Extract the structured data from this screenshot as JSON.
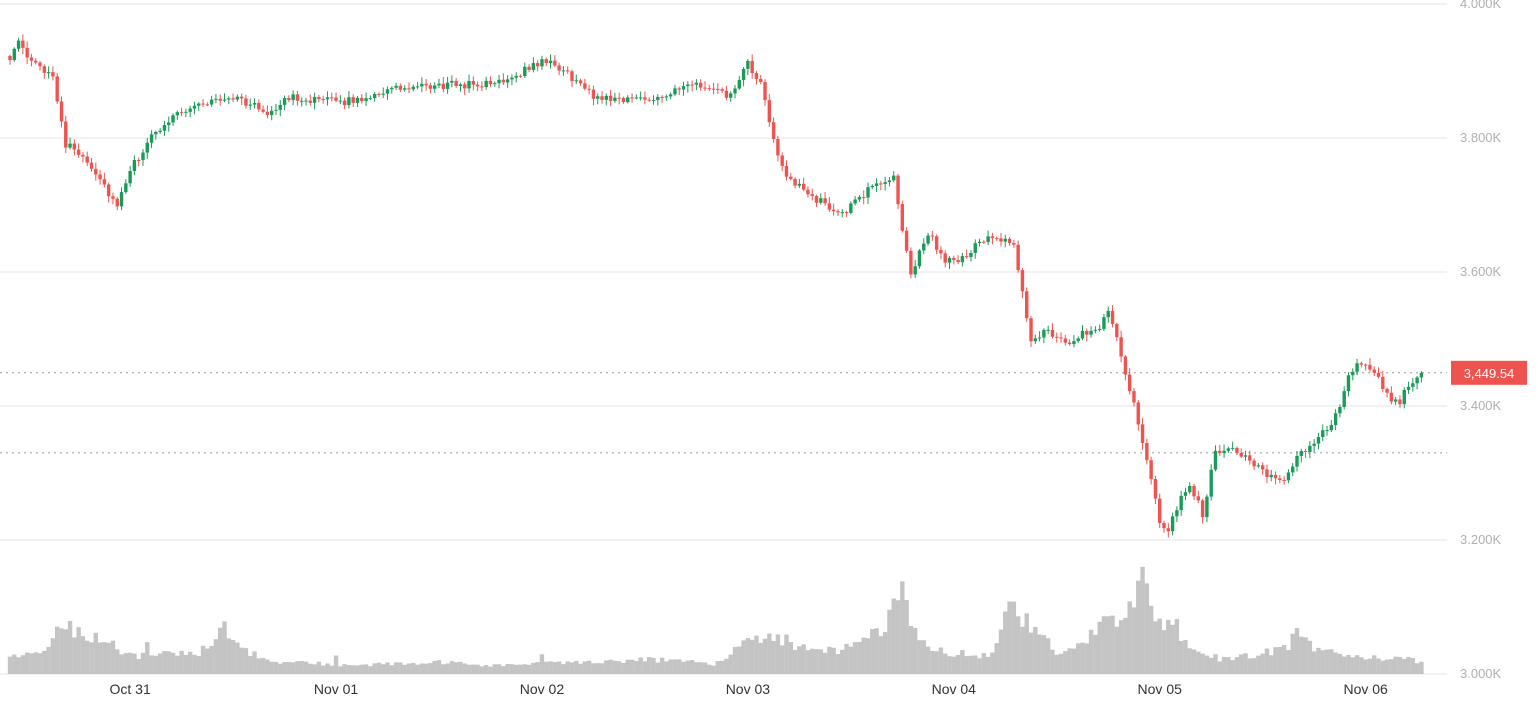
{
  "chart_data": {
    "type": "candlestick",
    "candle_interval": "30m",
    "y_axis": {
      "position": "right",
      "ylim": [
        3000,
        4000
      ],
      "ticks": [
        {
          "value": 3000,
          "label": "3.000K"
        },
        {
          "value": 3200,
          "label": "3.200K"
        },
        {
          "value": 3400,
          "label": "3.400K"
        },
        {
          "value": 3600,
          "label": "3.600K"
        },
        {
          "value": 3800,
          "label": "3.800K"
        },
        {
          "value": 4000,
          "label": "4.000K"
        }
      ]
    },
    "x_axis": {
      "labels": [
        {
          "index": 28,
          "label": "Oct 31"
        },
        {
          "index": 76,
          "label": "Nov 01"
        },
        {
          "index": 124,
          "label": "Nov 02"
        },
        {
          "index": 172,
          "label": "Nov 03"
        },
        {
          "index": 220,
          "label": "Nov 04"
        },
        {
          "index": 268,
          "label": "Nov 05"
        },
        {
          "index": 316,
          "label": "Nov 06"
        }
      ]
    },
    "last_price": {
      "value": 3449.54,
      "label": "3,449.54"
    },
    "reference_level": 3330,
    "grid": true,
    "colors": {
      "up": "#1a9b5a",
      "down": "#ef5350",
      "volume": "#c4c4c4",
      "grid": "#e6e6e6",
      "last_price_tag": "#ef5350"
    },
    "keypoints": [
      [
        0,
        3922
      ],
      [
        2,
        3940
      ],
      [
        5,
        3912
      ],
      [
        10,
        3895
      ],
      [
        13,
        3790
      ],
      [
        17,
        3775
      ],
      [
        21,
        3740
      ],
      [
        25,
        3695
      ],
      [
        28,
        3752
      ],
      [
        33,
        3800
      ],
      [
        38,
        3835
      ],
      [
        44,
        3850
      ],
      [
        52,
        3862
      ],
      [
        60,
        3838
      ],
      [
        66,
        3862
      ],
      [
        72,
        3855
      ],
      [
        80,
        3855
      ],
      [
        88,
        3872
      ],
      [
        96,
        3875
      ],
      [
        104,
        3880
      ],
      [
        112,
        3880
      ],
      [
        118,
        3895
      ],
      [
        124,
        3915
      ],
      [
        128,
        3905
      ],
      [
        132,
        3885
      ],
      [
        136,
        3862
      ],
      [
        144,
        3858
      ],
      [
        152,
        3863
      ],
      [
        160,
        3880
      ],
      [
        164,
        3870
      ],
      [
        168,
        3862
      ],
      [
        172,
        3910
      ],
      [
        175,
        3878
      ],
      [
        178,
        3800
      ],
      [
        181,
        3738
      ],
      [
        185,
        3722
      ],
      [
        190,
        3700
      ],
      [
        194,
        3688
      ],
      [
        198,
        3708
      ],
      [
        202,
        3735
      ],
      [
        206,
        3738
      ],
      [
        210,
        3595
      ],
      [
        214,
        3660
      ],
      [
        218,
        3615
      ],
      [
        222,
        3620
      ],
      [
        226,
        3645
      ],
      [
        230,
        3650
      ],
      [
        234,
        3638
      ],
      [
        238,
        3498
      ],
      [
        242,
        3515
      ],
      [
        246,
        3490
      ],
      [
        250,
        3508
      ],
      [
        254,
        3520
      ],
      [
        256,
        3545
      ],
      [
        258,
        3505
      ],
      [
        260,
        3450
      ],
      [
        263,
        3375
      ],
      [
        266,
        3285
      ],
      [
        268,
        3230
      ],
      [
        270,
        3210
      ],
      [
        272,
        3250
      ],
      [
        275,
        3285
      ],
      [
        278,
        3240
      ],
      [
        281,
        3330
      ],
      [
        284,
        3342
      ],
      [
        288,
        3325
      ],
      [
        292,
        3300
      ],
      [
        296,
        3285
      ],
      [
        300,
        3320
      ],
      [
        304,
        3348
      ],
      [
        308,
        3375
      ],
      [
        310,
        3400
      ],
      [
        312,
        3440
      ],
      [
        314,
        3465
      ],
      [
        316,
        3460
      ],
      [
        318,
        3450
      ],
      [
        320,
        3425
      ],
      [
        322,
        3410
      ],
      [
        324,
        3405
      ],
      [
        326,
        3432
      ],
      [
        329,
        3449.54
      ]
    ],
    "volume_keypoints": [
      [
        0,
        3.0
      ],
      [
        8,
        3.5
      ],
      [
        13,
        9.5
      ],
      [
        16,
        7.0
      ],
      [
        22,
        6.5
      ],
      [
        26,
        3.5
      ],
      [
        32,
        3.0
      ],
      [
        38,
        3.5
      ],
      [
        44,
        3.8
      ],
      [
        50,
        8.0
      ],
      [
        54,
        4.5
      ],
      [
        60,
        2.2
      ],
      [
        80,
        1.5
      ],
      [
        100,
        2.0
      ],
      [
        112,
        1.5
      ],
      [
        124,
        1.8
      ],
      [
        136,
        2.2
      ],
      [
        150,
        2.5
      ],
      [
        164,
        1.8
      ],
      [
        172,
        5.5
      ],
      [
        178,
        7.0
      ],
      [
        184,
        4.5
      ],
      [
        192,
        4.0
      ],
      [
        198,
        5.0
      ],
      [
        204,
        8.0
      ],
      [
        208,
        14.0
      ],
      [
        211,
        7.0
      ],
      [
        216,
        4.0
      ],
      [
        222,
        3.5
      ],
      [
        228,
        3.0
      ],
      [
        234,
        12.0
      ],
      [
        238,
        8.0
      ],
      [
        244,
        4.0
      ],
      [
        250,
        5.0
      ],
      [
        254,
        8.0
      ],
      [
        258,
        9.5
      ],
      [
        262,
        14.0
      ],
      [
        264,
        17.0
      ],
      [
        266,
        10.0
      ],
      [
        270,
        8.0
      ],
      [
        274,
        5.0
      ],
      [
        278,
        4.0
      ],
      [
        282,
        2.5
      ],
      [
        288,
        3.0
      ],
      [
        294,
        4.0
      ],
      [
        298,
        5.0
      ],
      [
        300,
        7.0
      ],
      [
        304,
        4.5
      ],
      [
        310,
        3.5
      ],
      [
        316,
        3.0
      ],
      [
        320,
        2.5
      ],
      [
        326,
        2.5
      ],
      [
        329,
        2.0
      ]
    ],
    "volume_spikes": [
      [
        32,
        5.5
      ],
      [
        76,
        3.2
      ],
      [
        124,
        3.4
      ],
      [
        172,
        6.2
      ],
      [
        208,
        16.0
      ],
      [
        234,
        12.5
      ],
      [
        264,
        18.5
      ],
      [
        272,
        9.5
      ]
    ]
  }
}
